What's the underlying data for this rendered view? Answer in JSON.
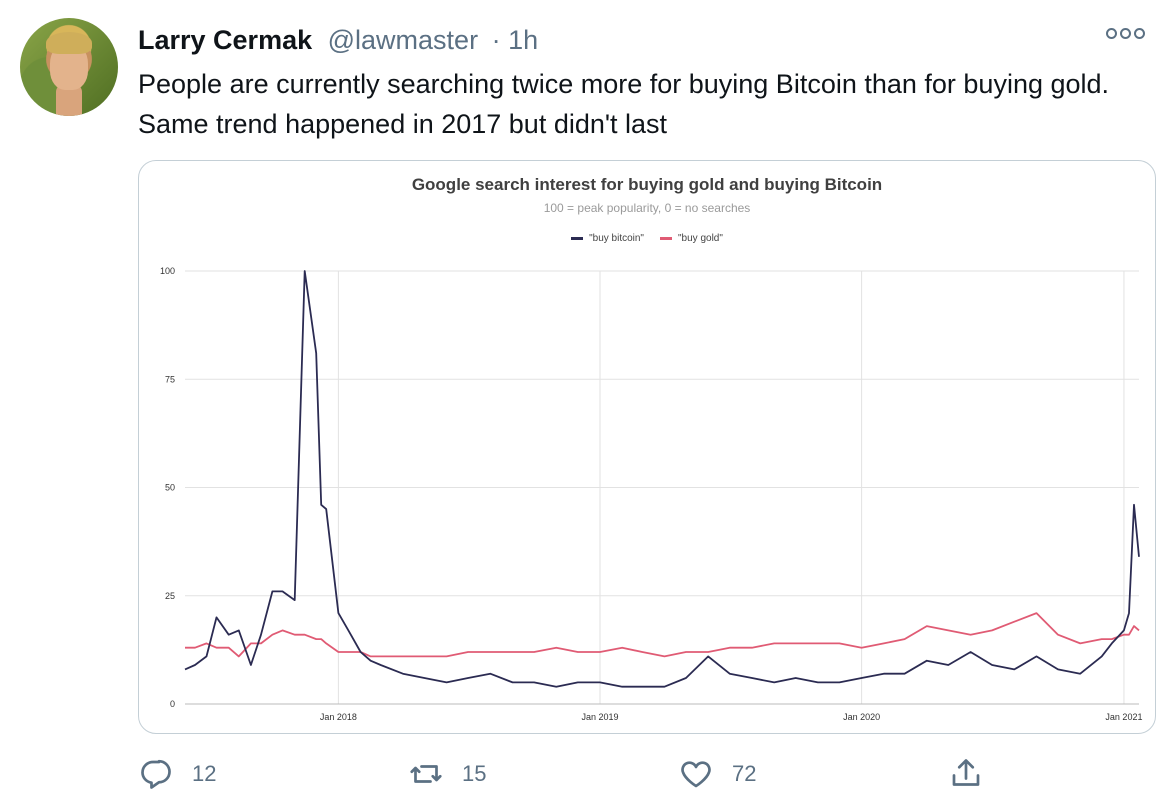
{
  "tweet": {
    "author_name": "Larry Cermak",
    "handle": "@lawmaster",
    "time": "· 1h",
    "text": "People are currently searching twice more for buying Bitcoin than for buying gold. Same trend happened in 2017 but didn't last"
  },
  "actions": {
    "replies": "12",
    "retweets": "15",
    "likes": "72"
  },
  "icons": [
    "more-icon",
    "reply-icon",
    "retweet-icon",
    "like-icon",
    "share-icon"
  ],
  "chart_data": {
    "type": "line",
    "title": "Google search interest for buying gold and buying Bitcoin",
    "subtitle": "100 = peak popularity, 0 =  no searches",
    "xlabel": "",
    "ylabel": "",
    "legend_position": "top-center",
    "grid": true,
    "ylim": [
      0,
      100
    ],
    "xlim": [
      "2017-06-01",
      "2021-01-22"
    ],
    "y_ticks": [
      "0",
      "25",
      "50",
      "75",
      "100"
    ],
    "x_ticks": [
      {
        "date": "2018-01-01",
        "label": "Jan 2018"
      },
      {
        "date": "2019-01-01",
        "label": "Jan 2019"
      },
      {
        "date": "2020-01-01",
        "label": "Jan 2020"
      },
      {
        "date": "2021-01-01",
        "label": "Jan 2021"
      }
    ],
    "x": [
      "2017-06-01",
      "2017-06-15",
      "2017-07-01",
      "2017-07-15",
      "2017-08-01",
      "2017-08-15",
      "2017-09-01",
      "2017-09-15",
      "2017-10-01",
      "2017-10-15",
      "2017-11-01",
      "2017-11-15",
      "2017-12-01",
      "2017-12-08",
      "2017-12-15",
      "2018-01-01",
      "2018-01-15",
      "2018-02-01",
      "2018-02-15",
      "2018-03-01",
      "2018-04-01",
      "2018-05-01",
      "2018-06-01",
      "2018-07-01",
      "2018-08-01",
      "2018-09-01",
      "2018-10-01",
      "2018-11-01",
      "2018-12-01",
      "2019-01-01",
      "2019-02-01",
      "2019-03-01",
      "2019-04-01",
      "2019-05-01",
      "2019-06-01",
      "2019-07-01",
      "2019-08-01",
      "2019-09-01",
      "2019-10-01",
      "2019-11-01",
      "2019-12-01",
      "2020-01-01",
      "2020-02-01",
      "2020-03-01",
      "2020-04-01",
      "2020-05-01",
      "2020-06-01",
      "2020-07-01",
      "2020-08-01",
      "2020-09-01",
      "2020-10-01",
      "2020-11-01",
      "2020-12-01",
      "2020-12-15",
      "2021-01-01",
      "2021-01-08",
      "2021-01-15",
      "2021-01-22"
    ],
    "series": [
      {
        "name": "\"buy bitcoin\"",
        "color": "#2b2b52",
        "values": [
          8,
          9,
          11,
          20,
          16,
          17,
          9,
          16,
          26,
          26,
          24,
          100,
          81,
          46,
          45,
          21,
          17,
          12,
          10,
          9,
          7,
          6,
          5,
          6,
          7,
          5,
          5,
          4,
          5,
          5,
          4,
          4,
          4,
          6,
          11,
          7,
          6,
          5,
          6,
          5,
          5,
          6,
          7,
          7,
          10,
          9,
          12,
          9,
          8,
          11,
          8,
          7,
          11,
          14,
          17,
          21,
          46,
          34
        ]
      },
      {
        "name": "\"buy gold\"",
        "color": "#e05b74",
        "values": [
          13,
          13,
          14,
          13,
          13,
          11,
          14,
          14,
          16,
          17,
          16,
          16,
          15,
          15,
          14,
          12,
          12,
          12,
          11,
          11,
          11,
          11,
          11,
          12,
          12,
          12,
          12,
          13,
          12,
          12,
          13,
          12,
          11,
          12,
          12,
          13,
          13,
          14,
          14,
          14,
          14,
          13,
          14,
          15,
          18,
          17,
          16,
          17,
          19,
          21,
          16,
          14,
          15,
          15,
          16,
          16,
          18,
          17
        ]
      }
    ]
  }
}
